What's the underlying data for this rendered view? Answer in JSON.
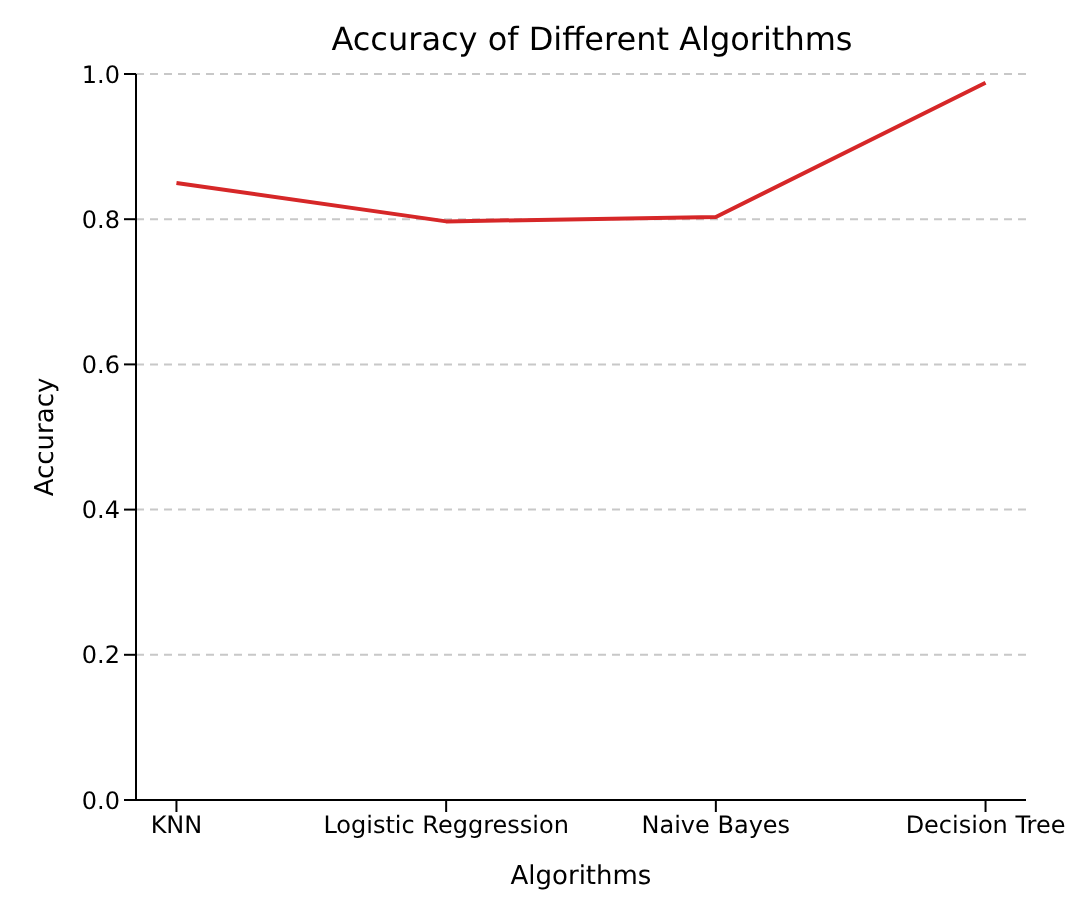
{
  "chart_data": {
    "type": "line",
    "title": "Accuracy of Different Algorithms",
    "xlabel": "Algorithms",
    "ylabel": "Accuracy",
    "categories": [
      "KNN",
      "Logistic Reggression",
      "Naive Bayes",
      "Decision Tree"
    ],
    "series": [
      {
        "color": "#d62728",
        "values": [
          0.85,
          0.797,
          0.803,
          0.988
        ]
      }
    ],
    "ylim": [
      0,
      1
    ],
    "yticks": [
      {
        "value": 0,
        "label": "0.0"
      },
      {
        "value": 0.2,
        "label": "0.2"
      },
      {
        "value": 0.4,
        "label": "0.4"
      },
      {
        "value": 0.6,
        "label": "0.6"
      },
      {
        "value": 0.8,
        "label": "0.8"
      },
      {
        "value": 1,
        "label": "1.0"
      }
    ],
    "grid": "y",
    "line_style": "solid",
    "marker": "none"
  }
}
